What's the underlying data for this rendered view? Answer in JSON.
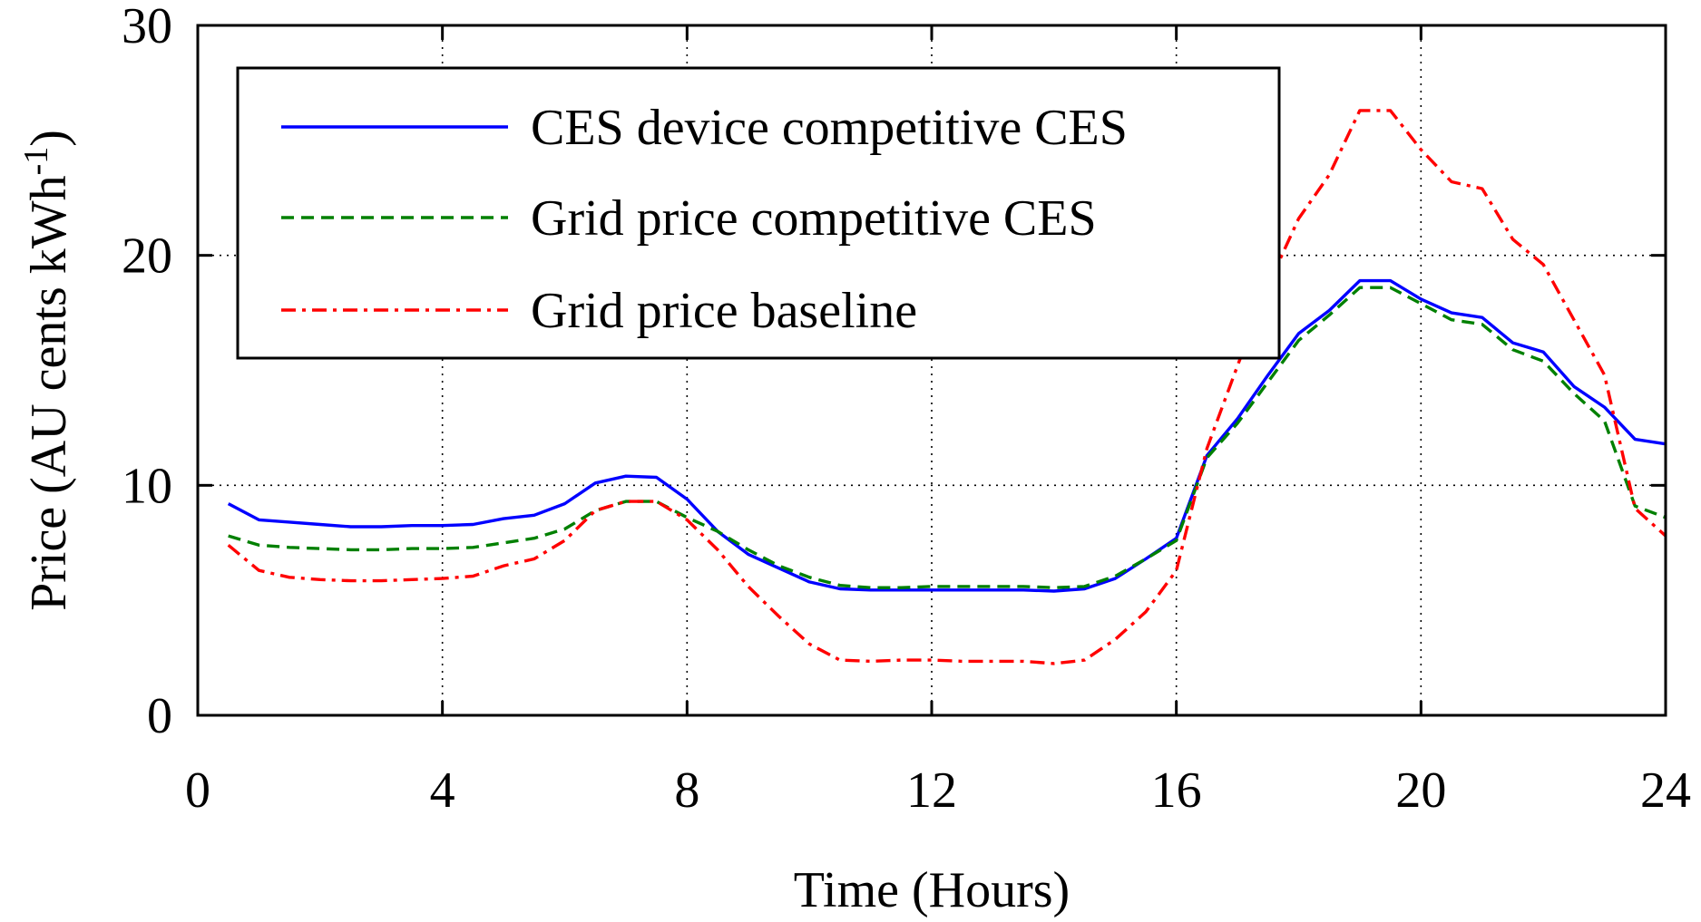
{
  "chart_data": {
    "type": "line",
    "xlabel": "Time (Hours)",
    "ylabel": "Price (AU cents kWh",
    "ylabel_superscript": "-1",
    "ylabel_close": ")",
    "xlim": [
      0,
      24
    ],
    "ylim": [
      0,
      30
    ],
    "xticks": [
      0,
      4,
      8,
      12,
      16,
      20,
      24
    ],
    "xtick_labels": [
      "0",
      "4",
      "8",
      "12",
      "16",
      "20",
      "24"
    ],
    "yticks": [
      0,
      10,
      20,
      30
    ],
    "ytick_labels": [
      "0",
      "10",
      "20",
      "30"
    ],
    "grid": true,
    "legend_position": "top-left",
    "x": [
      0.5,
      1,
      1.5,
      2,
      2.5,
      3,
      3.5,
      4,
      4.5,
      5,
      5.5,
      6,
      6.5,
      7,
      7.5,
      8,
      8.5,
      9,
      9.5,
      10,
      10.5,
      11,
      11.5,
      12,
      12.5,
      13,
      13.5,
      14,
      14.5,
      15,
      15.5,
      16,
      16.5,
      17,
      17.5,
      18,
      18.5,
      19,
      19.5,
      20,
      20.5,
      21,
      21.5,
      22,
      22.5,
      23,
      23.5,
      24
    ],
    "series": [
      {
        "name": "CES device competitive CES",
        "color": "#0000ff",
        "style": "solid",
        "values": [
          9.2,
          8.5,
          8.4,
          8.3,
          8.2,
          8.2,
          8.25,
          8.25,
          8.3,
          8.55,
          8.7,
          9.2,
          10.1,
          10.4,
          10.35,
          9.4,
          8.0,
          7.0,
          6.4,
          5.8,
          5.5,
          5.45,
          5.45,
          5.45,
          5.45,
          5.45,
          5.45,
          5.4,
          5.5,
          5.95,
          6.8,
          7.7,
          11.3,
          12.9,
          14.8,
          16.6,
          17.6,
          18.9,
          18.9,
          18.1,
          17.5,
          17.3,
          16.2,
          15.8,
          14.3,
          13.4,
          12.0,
          11.8
        ]
      },
      {
        "name": "Grid price competitive CES",
        "color": "#008000",
        "style": "dashed",
        "values": [
          7.8,
          7.4,
          7.3,
          7.25,
          7.2,
          7.2,
          7.25,
          7.25,
          7.3,
          7.5,
          7.7,
          8.1,
          8.9,
          9.3,
          9.3,
          8.6,
          8.0,
          7.2,
          6.5,
          6.0,
          5.65,
          5.55,
          5.55,
          5.6,
          5.6,
          5.6,
          5.6,
          5.55,
          5.6,
          6.05,
          6.8,
          7.6,
          11.2,
          12.7,
          14.5,
          16.3,
          17.4,
          18.6,
          18.6,
          17.9,
          17.2,
          17.0,
          15.9,
          15.4,
          14.0,
          12.8,
          9.1,
          8.6
        ]
      },
      {
        "name": "Grid price baseline",
        "color": "#ff0000",
        "style": "dashdot",
        "values": [
          7.4,
          6.3,
          6.0,
          5.9,
          5.85,
          5.85,
          5.9,
          5.95,
          6.05,
          6.5,
          6.8,
          7.6,
          8.9,
          9.3,
          9.3,
          8.5,
          7.2,
          5.6,
          4.3,
          3.1,
          2.4,
          2.35,
          2.4,
          2.4,
          2.35,
          2.35,
          2.35,
          2.25,
          2.4,
          3.3,
          4.5,
          6.3,
          11.6,
          15.2,
          18.7,
          21.6,
          23.5,
          26.3,
          26.3,
          24.6,
          23.2,
          22.9,
          20.7,
          19.6,
          17.2,
          14.8,
          9.0,
          7.8
        ]
      }
    ]
  }
}
